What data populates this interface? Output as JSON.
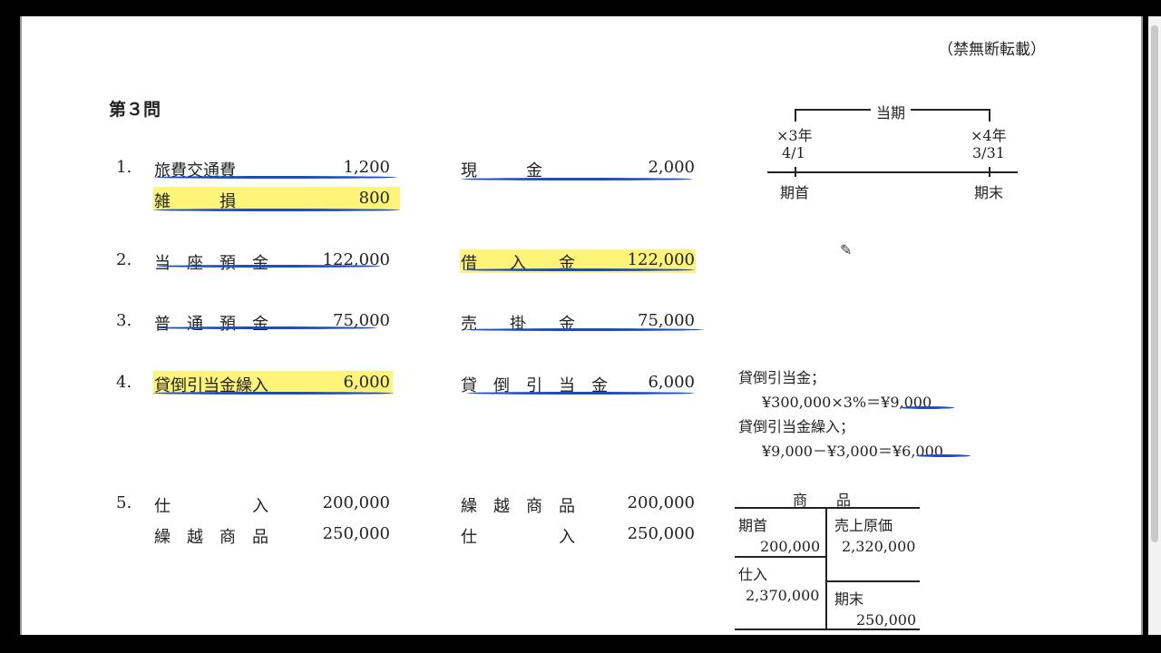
{
  "notice": "（禁無断転載）",
  "title": "第３問",
  "entries": [
    {
      "no": "1.",
      "lines": [
        {
          "debit": "旅費交通費",
          "debit_amount": "1,200",
          "credit": "現　　　金",
          "credit_amount": "2,000"
        },
        {
          "debit": "雑　　　損",
          "debit_amount": "800",
          "credit": "",
          "credit_amount": ""
        }
      ]
    },
    {
      "no": "2.",
      "lines": [
        {
          "debit": "当　座　預　金",
          "debit_amount": "122,000",
          "credit": "借　　入　　金",
          "credit_amount": "122,000"
        }
      ]
    },
    {
      "no": "3.",
      "lines": [
        {
          "debit": "普　通　預　金",
          "debit_amount": "75,000",
          "credit": "売　　掛　　金",
          "credit_amount": "75,000"
        }
      ]
    },
    {
      "no": "4.",
      "lines": [
        {
          "debit": "貸倒引当金繰入",
          "debit_amount": "6,000",
          "credit": "貸　倒　引　当　金",
          "credit_amount": "6,000"
        }
      ]
    },
    {
      "no": "5.",
      "lines": [
        {
          "debit": "仕　　　　　入",
          "debit_amount": "200,000",
          "credit": "繰　越　商　品",
          "credit_amount": "200,000"
        },
        {
          "debit": "繰　越　商　品",
          "debit_amount": "250,000",
          "credit": "仕　　　　　入",
          "credit_amount": "250,000"
        }
      ]
    }
  ],
  "timeline": {
    "label": "当期",
    "start_year": "×3年",
    "start_date": "4/1",
    "end_year": "×4年",
    "end_date": "3/31",
    "start_label": "期首",
    "end_label": "期末"
  },
  "notes": {
    "allowance_label": "貸倒引当金；",
    "allowance_calc": "¥300,000×3%＝",
    "allowance_result": "¥9,000",
    "provision_label": "貸倒引当金繰入；",
    "provision_calc": "¥9,000－¥3,000＝",
    "provision_result": "¥6,000"
  },
  "t_account": {
    "title": "商　　品",
    "left": [
      {
        "label": "期首",
        "amount": "200,000"
      },
      {
        "label": "仕入",
        "amount": "2,370,000"
      }
    ],
    "right": [
      {
        "label": "売上原価",
        "amount": "2,320,000"
      },
      {
        "label": "期末",
        "amount": "250,000"
      }
    ]
  },
  "colors": {
    "highlight": "#fff47a",
    "pen": "#1a4cc2"
  }
}
